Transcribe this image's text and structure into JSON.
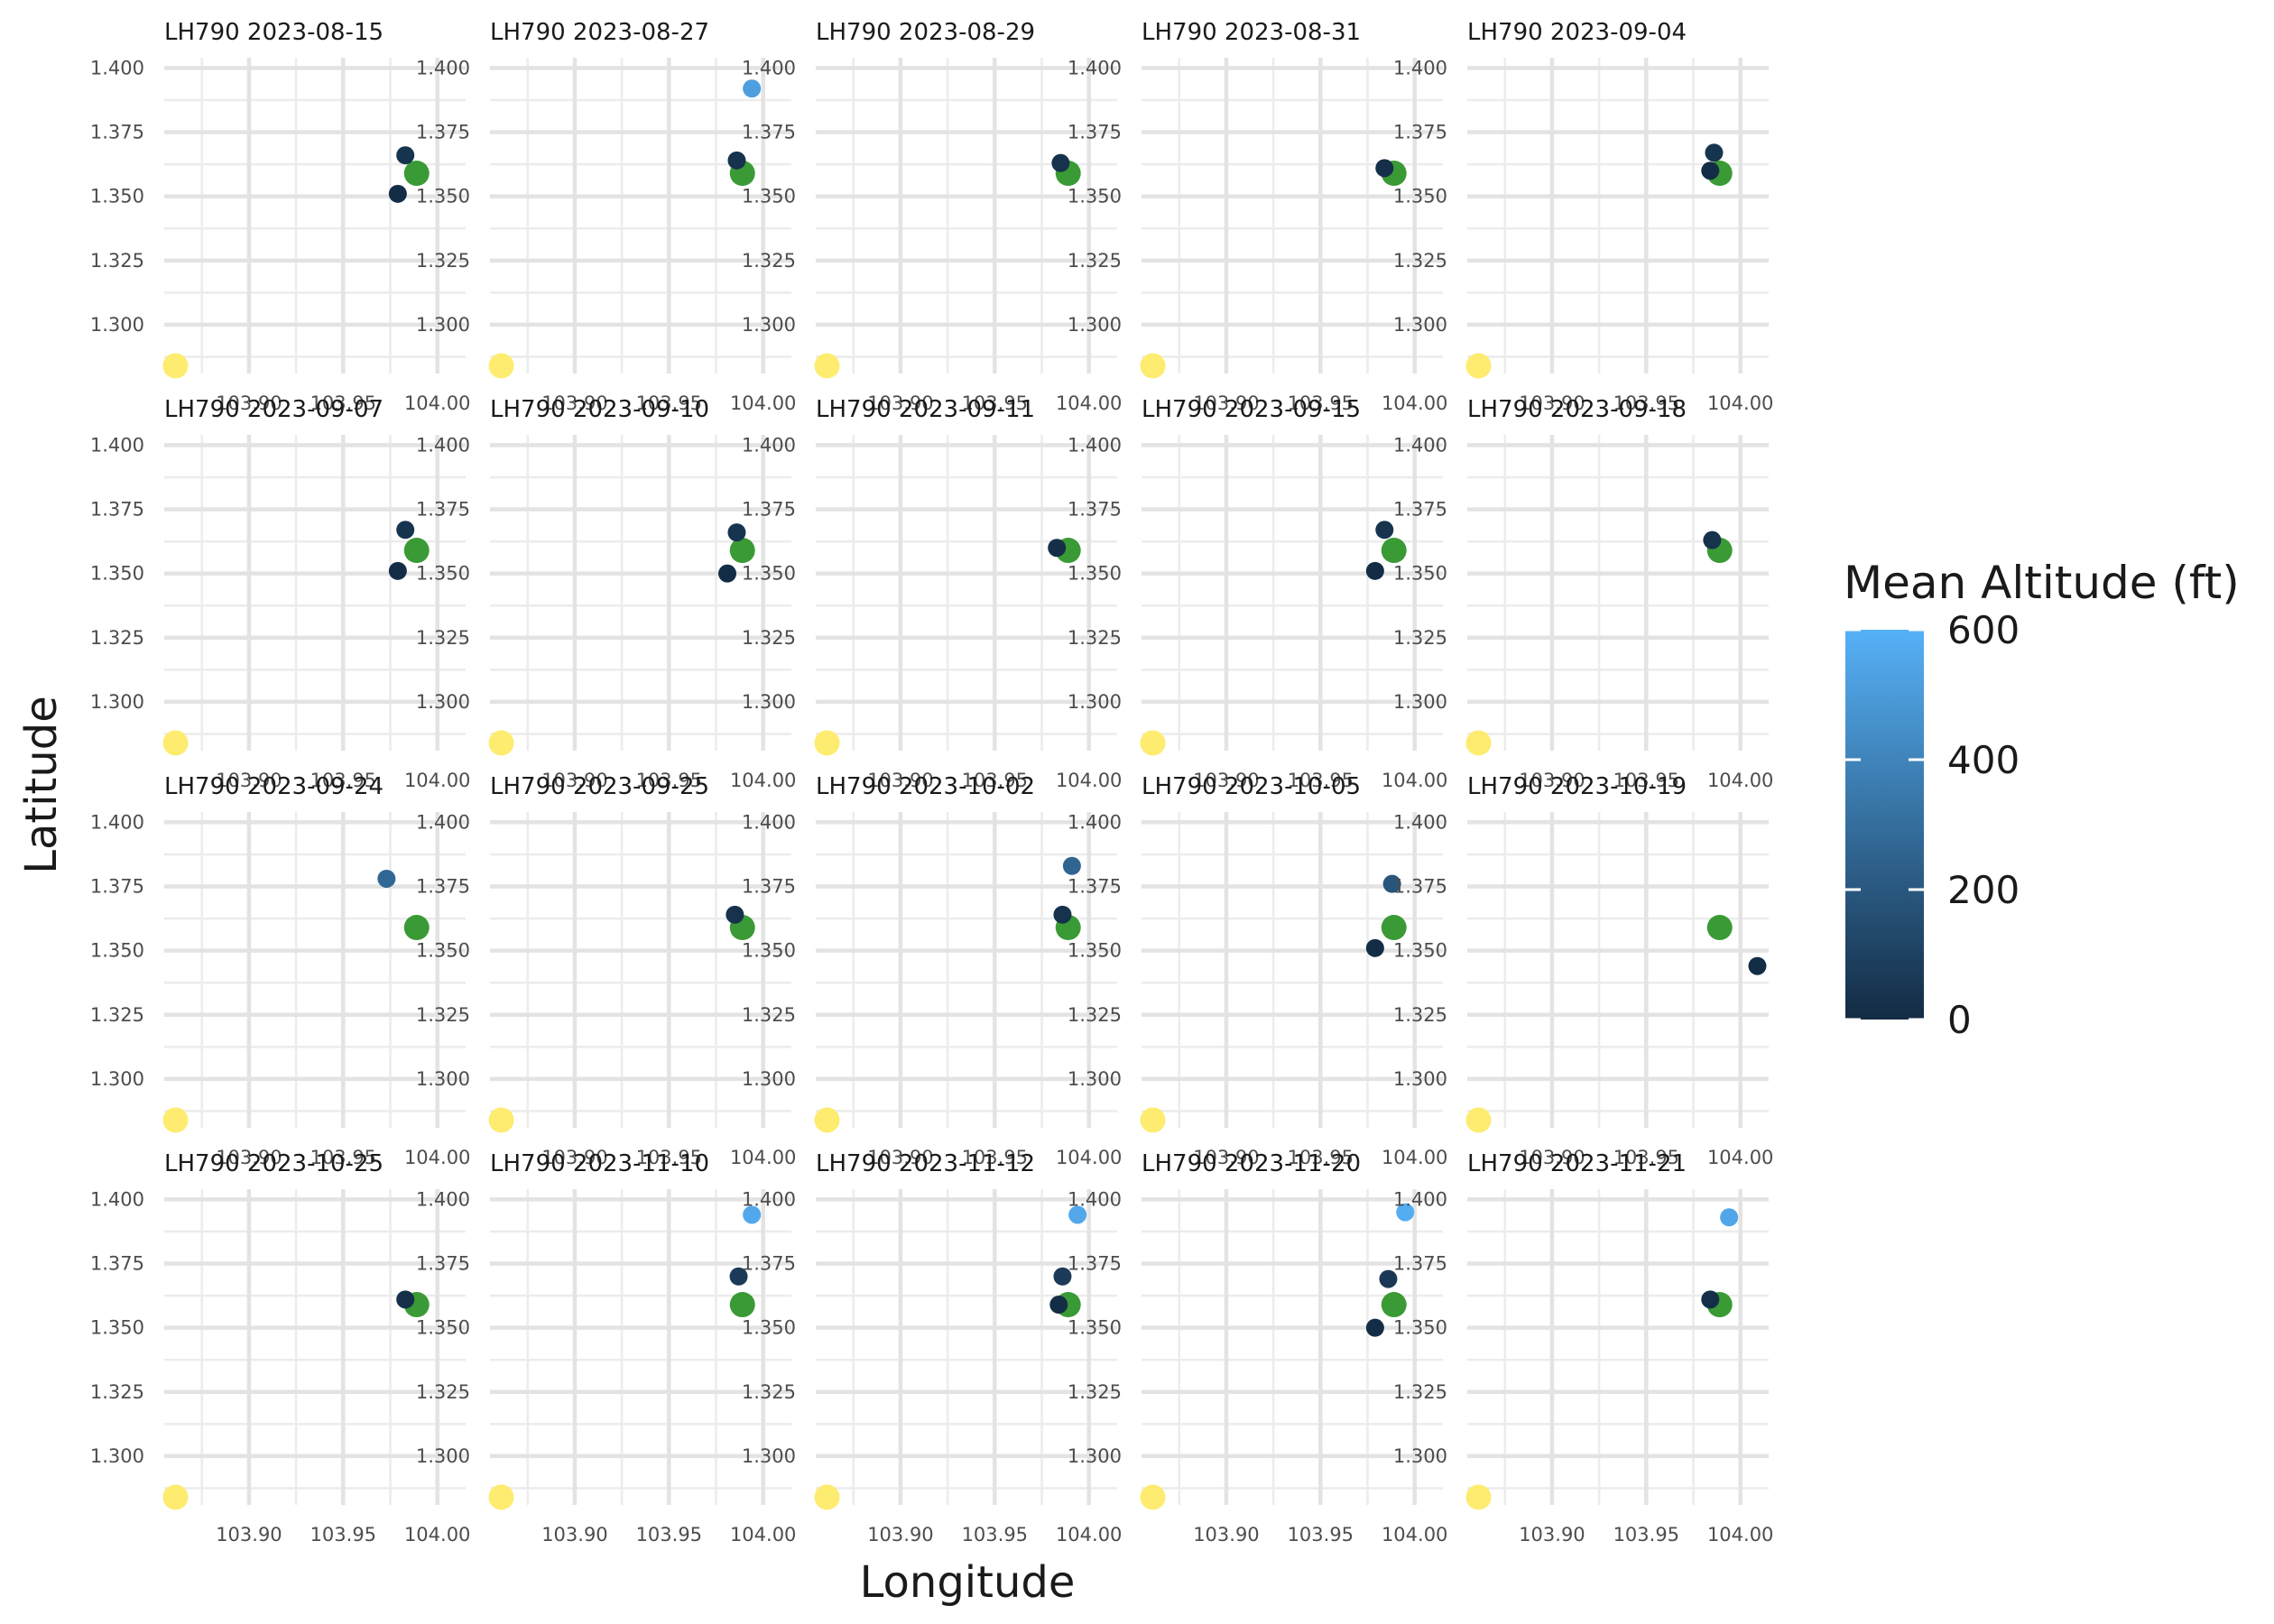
{
  "chart_data": {
    "type": "scatter",
    "layout": "facet-grid",
    "xlabel": "Longitude",
    "ylabel": "Latitude",
    "xlim": [
      103.855,
      104.015
    ],
    "ylim": [
      1.281,
      1.404
    ],
    "x_ticks": [
      103.9,
      103.95,
      104.0
    ],
    "x_tick_labels": [
      "103.90",
      "103.95",
      "104.00"
    ],
    "y_ticks": [
      1.3,
      1.325,
      1.35,
      1.375,
      1.4
    ],
    "y_tick_labels": [
      "1.300",
      "1.325",
      "1.350",
      "1.375",
      "1.400"
    ],
    "grid": true,
    "legend": {
      "title": "Mean Altitude (ft)",
      "position": "right",
      "range": [
        0,
        600
      ],
      "ticks": [
        0,
        200,
        400,
        600
      ],
      "tick_labels": [
        "0",
        "200",
        "400",
        "600"
      ],
      "colors": [
        "#132b43",
        "#56b1f7"
      ]
    },
    "reference_points": [
      {
        "lon": 103.861,
        "lat": 1.284,
        "color": "#fdec6f"
      },
      {
        "lon": 103.989,
        "lat": 1.359,
        "color": "#3a9a35"
      }
    ],
    "panels": [
      {
        "title": "LH790 2023-08-15",
        "points": [
          {
            "lon": 103.983,
            "lat": 1.366,
            "alt": 40
          },
          {
            "lon": 103.979,
            "lat": 1.351,
            "alt": 10
          }
        ]
      },
      {
        "title": "LH790 2023-08-27",
        "points": [
          {
            "lon": 103.986,
            "lat": 1.364,
            "alt": 30
          },
          {
            "lon": 103.994,
            "lat": 1.392,
            "alt": 520
          }
        ]
      },
      {
        "title": "LH790 2023-08-29",
        "points": [
          {
            "lon": 103.985,
            "lat": 1.363,
            "alt": 30
          }
        ]
      },
      {
        "title": "LH790 2023-08-31",
        "points": [
          {
            "lon": 103.984,
            "lat": 1.361,
            "alt": 20
          }
        ]
      },
      {
        "title": "LH790 2023-09-04",
        "points": [
          {
            "lon": 103.986,
            "lat": 1.367,
            "alt": 40
          },
          {
            "lon": 103.984,
            "lat": 1.36,
            "alt": 10
          }
        ]
      },
      {
        "title": "LH790 2023-09-07",
        "points": [
          {
            "lon": 103.983,
            "lat": 1.367,
            "alt": 40
          },
          {
            "lon": 103.979,
            "lat": 1.351,
            "alt": 10
          }
        ]
      },
      {
        "title": "LH790 2023-09-10",
        "points": [
          {
            "lon": 103.986,
            "lat": 1.366,
            "alt": 40
          },
          {
            "lon": 103.981,
            "lat": 1.35,
            "alt": 10
          }
        ]
      },
      {
        "title": "LH790 2023-09-11",
        "points": [
          {
            "lon": 103.983,
            "lat": 1.36,
            "alt": 20
          }
        ]
      },
      {
        "title": "LH790 2023-09-15",
        "points": [
          {
            "lon": 103.984,
            "lat": 1.367,
            "alt": 40
          },
          {
            "lon": 103.979,
            "lat": 1.351,
            "alt": 10
          }
        ]
      },
      {
        "title": "LH790 2023-09-18",
        "points": [
          {
            "lon": 103.985,
            "lat": 1.363,
            "alt": 30
          }
        ]
      },
      {
        "title": "LH790 2023-09-24",
        "points": [
          {
            "lon": 103.973,
            "lat": 1.378,
            "alt": 270
          }
        ]
      },
      {
        "title": "LH790 2023-09-25",
        "points": [
          {
            "lon": 103.985,
            "lat": 1.364,
            "alt": 30
          }
        ]
      },
      {
        "title": "LH790 2023-10-02",
        "points": [
          {
            "lon": 103.986,
            "lat": 1.364,
            "alt": 30
          },
          {
            "lon": 103.991,
            "lat": 1.383,
            "alt": 260
          }
        ]
      },
      {
        "title": "LH790 2023-10-05",
        "points": [
          {
            "lon": 103.988,
            "lat": 1.376,
            "alt": 190
          },
          {
            "lon": 103.979,
            "lat": 1.351,
            "alt": 10
          }
        ]
      },
      {
        "title": "LH790 2023-10-19",
        "points": [
          {
            "lon": 104.009,
            "lat": 1.344,
            "alt": 10
          }
        ]
      },
      {
        "title": "LH790 2023-10-25",
        "points": [
          {
            "lon": 103.983,
            "lat": 1.361,
            "alt": 20
          }
        ]
      },
      {
        "title": "LH790 2023-11-10",
        "points": [
          {
            "lon": 103.987,
            "lat": 1.37,
            "alt": 70
          },
          {
            "lon": 103.994,
            "lat": 1.394,
            "alt": 560
          }
        ]
      },
      {
        "title": "LH790 2023-11-12",
        "points": [
          {
            "lon": 103.986,
            "lat": 1.37,
            "alt": 70
          },
          {
            "lon": 103.984,
            "lat": 1.359,
            "alt": 10
          },
          {
            "lon": 103.994,
            "lat": 1.394,
            "alt": 560
          }
        ]
      },
      {
        "title": "LH790 2023-11-20",
        "points": [
          {
            "lon": 103.986,
            "lat": 1.369,
            "alt": 60
          },
          {
            "lon": 103.979,
            "lat": 1.35,
            "alt": 10
          },
          {
            "lon": 103.995,
            "lat": 1.395,
            "alt": 580
          }
        ]
      },
      {
        "title": "LH790 2023-11-21",
        "points": [
          {
            "lon": 103.984,
            "lat": 1.361,
            "alt": 20
          },
          {
            "lon": 103.994,
            "lat": 1.393,
            "alt": 550
          }
        ]
      }
    ]
  }
}
